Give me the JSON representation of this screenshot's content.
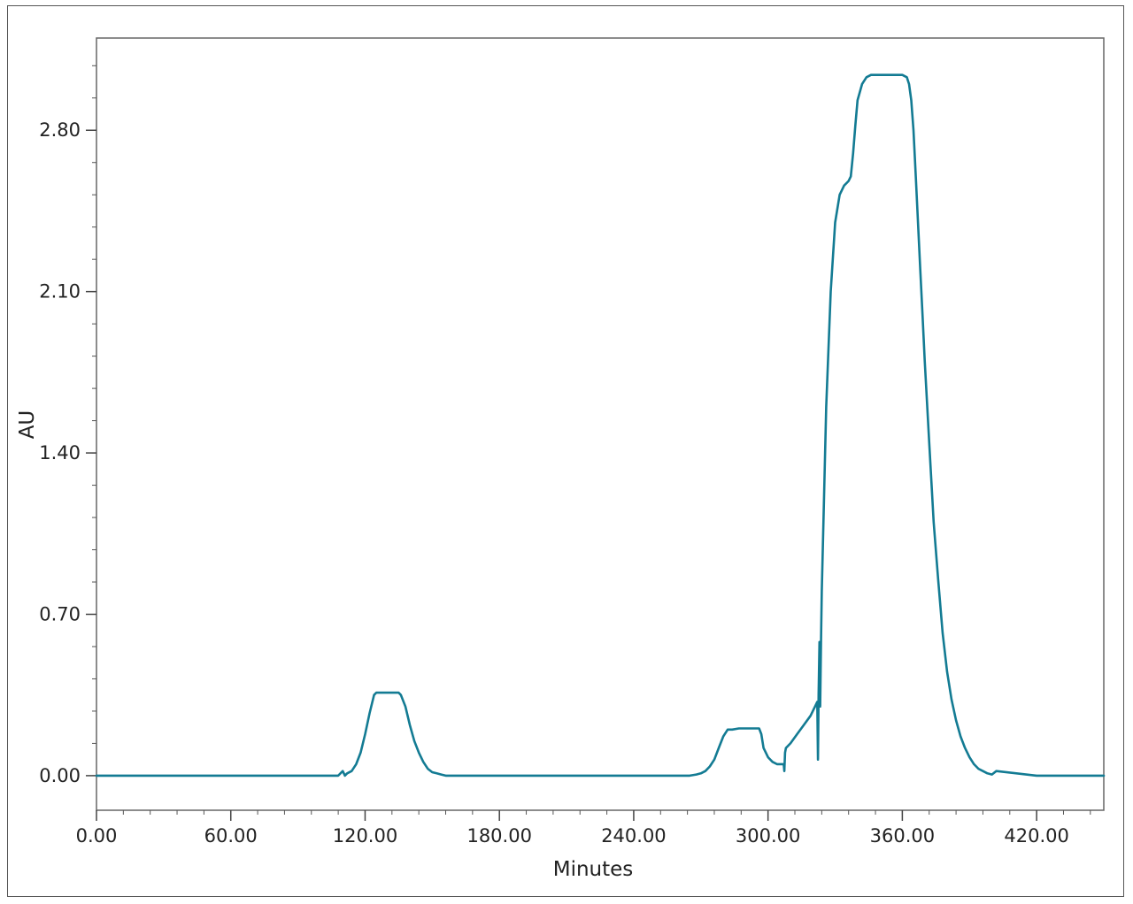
{
  "chart_data": {
    "type": "line",
    "title": "",
    "xlabel": "Minutes",
    "ylabel": "AU",
    "xlim": [
      0,
      450
    ],
    "ylim": [
      -0.15,
      3.2
    ],
    "xticks": [
      0,
      60,
      120,
      180,
      240,
      300,
      360,
      420
    ],
    "xtick_labels": [
      "0.00",
      "60.00",
      "120.00",
      "180.00",
      "240.00",
      "300.00",
      "360.00",
      "420.00"
    ],
    "yticks": [
      0,
      0.7,
      1.4,
      2.1,
      2.8
    ],
    "ytick_labels": [
      "0.00",
      "0.70",
      "1.40",
      "2.10",
      "2.80"
    ],
    "grid": false,
    "legend": "none",
    "series": [
      {
        "color": "#137b93",
        "x": [
          0,
          108,
          110,
          111,
          112,
          114,
          116,
          118,
          120,
          122,
          124,
          125,
          126,
          130,
          135,
          136,
          138,
          140,
          142,
          144,
          146,
          148,
          150,
          152,
          154,
          156,
          200,
          250,
          265,
          268,
          270,
          272,
          274,
          276,
          278,
          280,
          282,
          284,
          287,
          290,
          296,
          297,
          298,
          300,
          302,
          304,
          306,
          307,
          307.3,
          307.6,
          308,
          310,
          313,
          316,
          319,
          321,
          322,
          322.3,
          322.6,
          323,
          323.3,
          323.7,
          324,
          326,
          328,
          330,
          332,
          334,
          336,
          337,
          338,
          339,
          340,
          342,
          344,
          346,
          348,
          350,
          355,
          360,
          362,
          363,
          364,
          365,
          366,
          367,
          368,
          369,
          370,
          372,
          374,
          376,
          378,
          380,
          382,
          384,
          386,
          388,
          390,
          392,
          394,
          396,
          398,
          400,
          402,
          420,
          450
        ],
        "y": [
          0,
          0,
          0.02,
          0,
          0.01,
          0.02,
          0.05,
          0.1,
          0.18,
          0.27,
          0.35,
          0.36,
          0.36,
          0.36,
          0.36,
          0.35,
          0.3,
          0.22,
          0.15,
          0.1,
          0.06,
          0.03,
          0.015,
          0.01,
          0.005,
          0,
          0,
          0,
          0,
          0.005,
          0.01,
          0.02,
          0.04,
          0.07,
          0.12,
          0.17,
          0.2,
          0.2,
          0.205,
          0.205,
          0.205,
          0.18,
          0.12,
          0.08,
          0.06,
          0.05,
          0.05,
          0.05,
          0.02,
          0.1,
          0.12,
          0.14,
          0.18,
          0.22,
          0.26,
          0.3,
          0.32,
          0.07,
          0.35,
          0.58,
          0.3,
          0.6,
          0.8,
          1.6,
          2.1,
          2.4,
          2.52,
          2.56,
          2.58,
          2.6,
          2.7,
          2.82,
          2.93,
          3.0,
          3.03,
          3.04,
          3.04,
          3.04,
          3.04,
          3.04,
          3.03,
          3.0,
          2.93,
          2.8,
          2.6,
          2.4,
          2.2,
          2.0,
          1.8,
          1.45,
          1.1,
          0.85,
          0.62,
          0.45,
          0.33,
          0.24,
          0.17,
          0.12,
          0.08,
          0.05,
          0.03,
          0.02,
          0.01,
          0.005,
          0.02,
          0,
          0
        ]
      }
    ]
  }
}
